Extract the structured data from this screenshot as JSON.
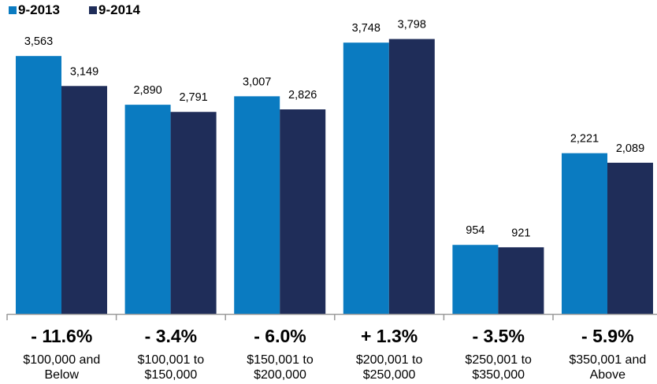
{
  "chart_data": {
    "type": "bar",
    "title": "",
    "xlabel": "",
    "ylabel": "",
    "ylim": [
      0,
      4000
    ],
    "grid": false,
    "legend_position": "top-left",
    "categories": [
      [
        "$100,000 and",
        "Below"
      ],
      [
        "$100,001 to",
        "$150,000"
      ],
      [
        "$150,001 to",
        "$200,000"
      ],
      [
        "$200,001 to",
        "$250,000"
      ],
      [
        "$250,001 to",
        "$350,000"
      ],
      [
        "$350,001 and",
        "Above"
      ]
    ],
    "series": [
      {
        "name": "9-2013",
        "color": "#0a7bc1",
        "values": [
          3563,
          2890,
          3007,
          3748,
          954,
          2221
        ],
        "labels": [
          "3,563",
          "2,890",
          "3,007",
          "3,748",
          "954",
          "2,221"
        ]
      },
      {
        "name": "9-2014",
        "color": "#1f2d59",
        "values": [
          3149,
          2791,
          2826,
          3798,
          921,
          2089
        ],
        "labels": [
          "3,149",
          "2,791",
          "2,826",
          "3,798",
          "921",
          "2,089"
        ]
      }
    ],
    "changes": [
      "- 11.6%",
      "- 3.4%",
      "- 6.0%",
      "+ 1.3%",
      "- 3.5%",
      "- 5.9%"
    ]
  }
}
